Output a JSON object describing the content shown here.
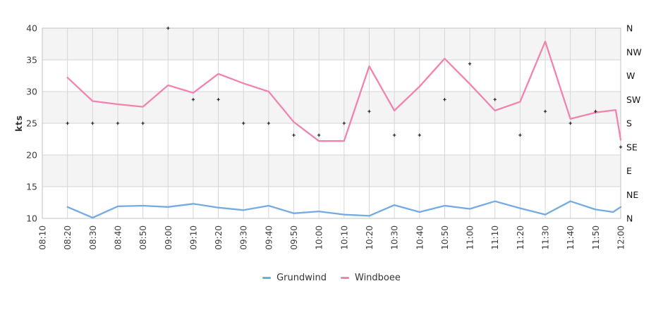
{
  "chart_data": {
    "type": "line",
    "title": "",
    "ylabel": "kts",
    "y_axis": {
      "min": 10,
      "max": 40,
      "tick_step": 5,
      "ticks": [
        40,
        35,
        30,
        25,
        20,
        15,
        10
      ]
    },
    "x_axis": {
      "categories": [
        "08:10",
        "08:20",
        "08:30",
        "08:40",
        "08:50",
        "09:00",
        "09:10",
        "09:20",
        "09:30",
        "09:40",
        "09:50",
        "10:00",
        "10:10",
        "10:20",
        "10:30",
        "10:40",
        "10:50",
        "11:00",
        "11:10",
        "11:20",
        "11:30",
        "11:40",
        "11:50",
        "12:00"
      ]
    },
    "direction_axis": {
      "labels": [
        "N",
        "NW",
        "W",
        "SW",
        "S",
        "SE",
        "E",
        "NE",
        "N"
      ],
      "degrees_top_to_bottom": [
        360,
        315,
        270,
        225,
        180,
        135,
        90,
        45,
        0
      ]
    },
    "plot_bands_kts": [
      [
        35,
        40
      ],
      [
        25,
        30
      ],
      [
        15,
        20
      ]
    ],
    "legend": {
      "position": "bottom"
    },
    "series": [
      {
        "name": "Grundwind",
        "color": "#74abe2",
        "points": [
          [
            "08:20",
            11.8
          ],
          [
            "08:30",
            10.1
          ],
          [
            "08:40",
            11.9
          ],
          [
            "08:50",
            12.0
          ],
          [
            "09:00",
            11.8
          ],
          [
            "09:10",
            12.3
          ],
          [
            "09:20",
            11.7
          ],
          [
            "09:30",
            11.3
          ],
          [
            "09:40",
            12.0
          ],
          [
            "09:50",
            10.8
          ],
          [
            "10:00",
            11.1
          ],
          [
            "10:10",
            10.6
          ],
          [
            "10:20",
            10.4
          ],
          [
            "10:30",
            12.1
          ],
          [
            "10:40",
            11.0
          ],
          [
            "10:50",
            12.0
          ],
          [
            "11:00",
            11.5
          ],
          [
            "11:10",
            12.7
          ],
          [
            "11:20",
            11.6
          ],
          [
            "11:30",
            10.6
          ],
          [
            "11:40",
            12.7
          ],
          [
            "11:50",
            11.4
          ],
          [
            "11:57",
            11.0
          ],
          [
            "12:00",
            11.8
          ]
        ]
      },
      {
        "name": "Windboee",
        "color": "#f083b0",
        "points": [
          [
            "08:20",
            32.2
          ],
          [
            "08:30",
            28.5
          ],
          [
            "08:40",
            28.0
          ],
          [
            "08:50",
            27.6
          ],
          [
            "09:00",
            31.0
          ],
          [
            "09:10",
            29.8
          ],
          [
            "09:20",
            32.8
          ],
          [
            "09:30",
            31.3
          ],
          [
            "09:40",
            30.0
          ],
          [
            "09:50",
            25.2
          ],
          [
            "10:00",
            22.2
          ],
          [
            "10:10",
            22.2
          ],
          [
            "10:20",
            34.0
          ],
          [
            "10:30",
            27.0
          ],
          [
            "10:40",
            30.8
          ],
          [
            "10:50",
            35.2
          ],
          [
            "11:00",
            31.2
          ],
          [
            "11:10",
            27.0
          ],
          [
            "11:20",
            28.4
          ],
          [
            "11:30",
            37.9
          ],
          [
            "11:40",
            25.7
          ],
          [
            "11:50",
            26.7
          ],
          [
            "11:58",
            27.1
          ],
          [
            "12:00",
            22.4
          ]
        ]
      }
    ],
    "wind_direction_markers": {
      "marker": "plus",
      "color": "#111111",
      "points": [
        {
          "t": "08:20",
          "dir": "S",
          "deg": 180
        },
        {
          "t": "08:30",
          "dir": "S",
          "deg": 180
        },
        {
          "t": "08:40",
          "dir": "S",
          "deg": 180
        },
        {
          "t": "08:50",
          "dir": "S",
          "deg": 180
        },
        {
          "t": "09:00",
          "dir": "N",
          "deg": 360
        },
        {
          "t": "09:10",
          "dir": "SW",
          "deg": 225
        },
        {
          "t": "09:20",
          "dir": "SW",
          "deg": 225
        },
        {
          "t": "09:30",
          "dir": "S",
          "deg": 180
        },
        {
          "t": "09:40",
          "dir": "S",
          "deg": 180
        },
        {
          "t": "09:50",
          "dir": "SSE",
          "deg": 157.5
        },
        {
          "t": "10:00",
          "dir": "SSE",
          "deg": 157.5
        },
        {
          "t": "10:10",
          "dir": "S",
          "deg": 180
        },
        {
          "t": "10:20",
          "dir": "SSW",
          "deg": 202.5
        },
        {
          "t": "10:30",
          "dir": "SSE",
          "deg": 157.5
        },
        {
          "t": "10:40",
          "dir": "SSE",
          "deg": 157.5
        },
        {
          "t": "10:50",
          "dir": "SW",
          "deg": 225
        },
        {
          "t": "11:00",
          "dir": "WNW",
          "deg": 292.5
        },
        {
          "t": "11:10",
          "dir": "SW",
          "deg": 225
        },
        {
          "t": "11:20",
          "dir": "SSE",
          "deg": 157.5
        },
        {
          "t": "11:30",
          "dir": "SSW",
          "deg": 202.5
        },
        {
          "t": "11:40",
          "dir": "S",
          "deg": 180
        },
        {
          "t": "11:50",
          "dir": "SSW",
          "deg": 202.5
        },
        {
          "t": "12:00",
          "dir": "SE",
          "deg": 135
        }
      ]
    },
    "style": {
      "band_fill": "#f4f4f4",
      "grid_color": "#d6d6d6",
      "border_color": "#c2c2c2",
      "tick_label_color": "#3d3d3d",
      "direction_label_color": "#141414"
    }
  }
}
